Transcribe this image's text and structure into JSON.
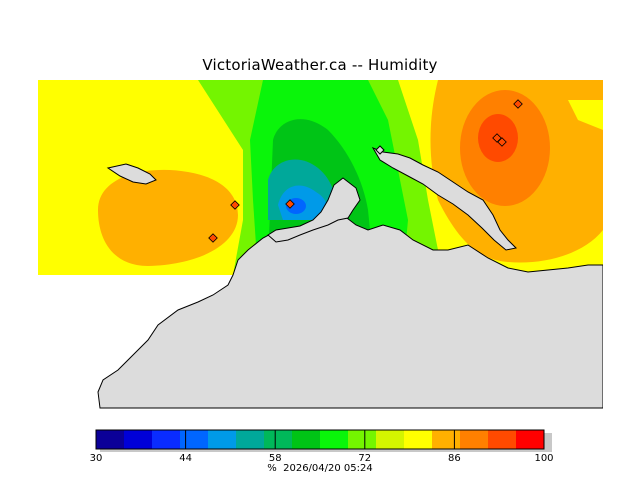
{
  "title": "VictoriaWeather.ca -- Humidity",
  "colorbar": {
    "min": 30,
    "max": 100,
    "ticks": [
      30,
      44,
      58,
      72,
      86,
      100
    ],
    "colors": [
      "#0b0098",
      "#0000d8",
      "#0a2cff",
      "#0066ff",
      "#009ae8",
      "#00a89a",
      "#00b85a",
      "#00c416",
      "#0af50a",
      "#74f500",
      "#d4f500",
      "#ffff00",
      "#ffb000",
      "#ff8000",
      "#ff4a00",
      "#ff0000"
    ]
  },
  "footer": {
    "unit": "%",
    "timestamp": "2026/04/20 05:24"
  },
  "legend_colors": {
    "land": "#dcdcdc",
    "coast": "#000000",
    "station_marker": "#ff4a00"
  }
}
